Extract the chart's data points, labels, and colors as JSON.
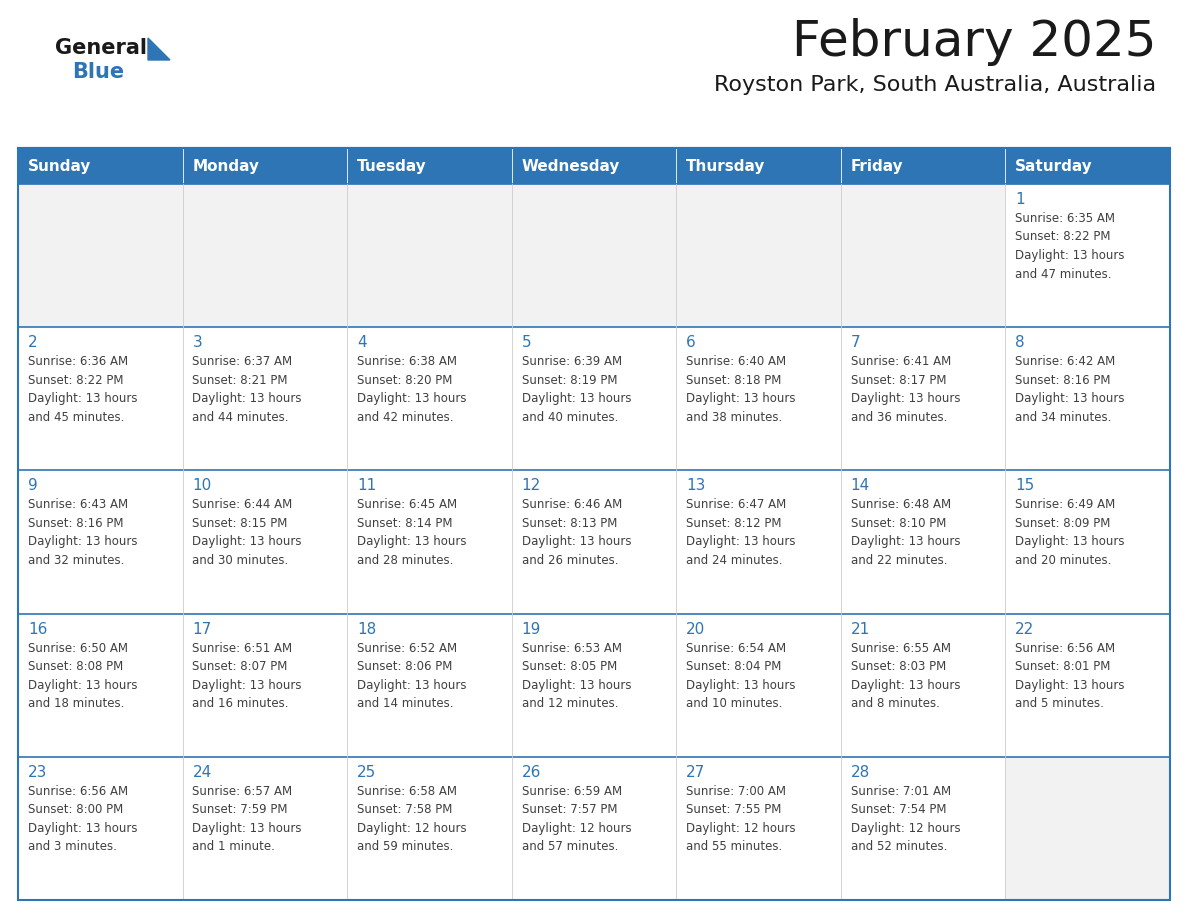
{
  "title": "February 2025",
  "subtitle": "Royston Park, South Australia, Australia",
  "days_of_week": [
    "Sunday",
    "Monday",
    "Tuesday",
    "Wednesday",
    "Thursday",
    "Friday",
    "Saturday"
  ],
  "header_bg_color": "#2E75B6",
  "header_text_color": "#FFFFFF",
  "cell_bg_color": "#FFFFFF",
  "cell_empty_bg_color": "#F2F2F2",
  "cell_border_color": "#2E75B6",
  "day_number_color": "#2E75B6",
  "cell_text_color": "#404040",
  "title_color": "#1a1a1a",
  "subtitle_color": "#1a1a1a",
  "logo_general_color": "#1a1a1a",
  "logo_blue_color": "#2E75B6",
  "weeks": [
    [
      {
        "day": "",
        "info": ""
      },
      {
        "day": "",
        "info": ""
      },
      {
        "day": "",
        "info": ""
      },
      {
        "day": "",
        "info": ""
      },
      {
        "day": "",
        "info": ""
      },
      {
        "day": "",
        "info": ""
      },
      {
        "day": "1",
        "info": "Sunrise: 6:35 AM\nSunset: 8:22 PM\nDaylight: 13 hours\nand 47 minutes."
      }
    ],
    [
      {
        "day": "2",
        "info": "Sunrise: 6:36 AM\nSunset: 8:22 PM\nDaylight: 13 hours\nand 45 minutes."
      },
      {
        "day": "3",
        "info": "Sunrise: 6:37 AM\nSunset: 8:21 PM\nDaylight: 13 hours\nand 44 minutes."
      },
      {
        "day": "4",
        "info": "Sunrise: 6:38 AM\nSunset: 8:20 PM\nDaylight: 13 hours\nand 42 minutes."
      },
      {
        "day": "5",
        "info": "Sunrise: 6:39 AM\nSunset: 8:19 PM\nDaylight: 13 hours\nand 40 minutes."
      },
      {
        "day": "6",
        "info": "Sunrise: 6:40 AM\nSunset: 8:18 PM\nDaylight: 13 hours\nand 38 minutes."
      },
      {
        "day": "7",
        "info": "Sunrise: 6:41 AM\nSunset: 8:17 PM\nDaylight: 13 hours\nand 36 minutes."
      },
      {
        "day": "8",
        "info": "Sunrise: 6:42 AM\nSunset: 8:16 PM\nDaylight: 13 hours\nand 34 minutes."
      }
    ],
    [
      {
        "day": "9",
        "info": "Sunrise: 6:43 AM\nSunset: 8:16 PM\nDaylight: 13 hours\nand 32 minutes."
      },
      {
        "day": "10",
        "info": "Sunrise: 6:44 AM\nSunset: 8:15 PM\nDaylight: 13 hours\nand 30 minutes."
      },
      {
        "day": "11",
        "info": "Sunrise: 6:45 AM\nSunset: 8:14 PM\nDaylight: 13 hours\nand 28 minutes."
      },
      {
        "day": "12",
        "info": "Sunrise: 6:46 AM\nSunset: 8:13 PM\nDaylight: 13 hours\nand 26 minutes."
      },
      {
        "day": "13",
        "info": "Sunrise: 6:47 AM\nSunset: 8:12 PM\nDaylight: 13 hours\nand 24 minutes."
      },
      {
        "day": "14",
        "info": "Sunrise: 6:48 AM\nSunset: 8:10 PM\nDaylight: 13 hours\nand 22 minutes."
      },
      {
        "day": "15",
        "info": "Sunrise: 6:49 AM\nSunset: 8:09 PM\nDaylight: 13 hours\nand 20 minutes."
      }
    ],
    [
      {
        "day": "16",
        "info": "Sunrise: 6:50 AM\nSunset: 8:08 PM\nDaylight: 13 hours\nand 18 minutes."
      },
      {
        "day": "17",
        "info": "Sunrise: 6:51 AM\nSunset: 8:07 PM\nDaylight: 13 hours\nand 16 minutes."
      },
      {
        "day": "18",
        "info": "Sunrise: 6:52 AM\nSunset: 8:06 PM\nDaylight: 13 hours\nand 14 minutes."
      },
      {
        "day": "19",
        "info": "Sunrise: 6:53 AM\nSunset: 8:05 PM\nDaylight: 13 hours\nand 12 minutes."
      },
      {
        "day": "20",
        "info": "Sunrise: 6:54 AM\nSunset: 8:04 PM\nDaylight: 13 hours\nand 10 minutes."
      },
      {
        "day": "21",
        "info": "Sunrise: 6:55 AM\nSunset: 8:03 PM\nDaylight: 13 hours\nand 8 minutes."
      },
      {
        "day": "22",
        "info": "Sunrise: 6:56 AM\nSunset: 8:01 PM\nDaylight: 13 hours\nand 5 minutes."
      }
    ],
    [
      {
        "day": "23",
        "info": "Sunrise: 6:56 AM\nSunset: 8:00 PM\nDaylight: 13 hours\nand 3 minutes."
      },
      {
        "day": "24",
        "info": "Sunrise: 6:57 AM\nSunset: 7:59 PM\nDaylight: 13 hours\nand 1 minute."
      },
      {
        "day": "25",
        "info": "Sunrise: 6:58 AM\nSunset: 7:58 PM\nDaylight: 12 hours\nand 59 minutes."
      },
      {
        "day": "26",
        "info": "Sunrise: 6:59 AM\nSunset: 7:57 PM\nDaylight: 12 hours\nand 57 minutes."
      },
      {
        "day": "27",
        "info": "Sunrise: 7:00 AM\nSunset: 7:55 PM\nDaylight: 12 hours\nand 55 minutes."
      },
      {
        "day": "28",
        "info": "Sunrise: 7:01 AM\nSunset: 7:54 PM\nDaylight: 12 hours\nand 52 minutes."
      },
      {
        "day": "",
        "info": ""
      }
    ]
  ]
}
